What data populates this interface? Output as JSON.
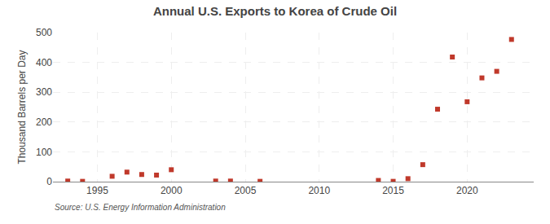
{
  "chart_data": {
    "type": "scatter",
    "title": "Annual U.S. Exports to Korea of Crude Oil",
    "ylabel": "Thousand Barrels per Day",
    "annotations": [
      "Source: U.S. Energy Information Administration"
    ],
    "x": [
      1993,
      1994,
      1996,
      1997,
      1998,
      1999,
      2000,
      2003,
      2004,
      2006,
      2014,
      2015,
      2016,
      2017,
      2018,
      2019,
      2020,
      2021,
      2022,
      2023
    ],
    "values": [
      2,
      1,
      18,
      32,
      24,
      22,
      40,
      2,
      2,
      1,
      4,
      1,
      10,
      57,
      243,
      418,
      268,
      348,
      370,
      477
    ],
    "color": "#c0392b",
    "marker": "square",
    "xlim": [
      1992,
      2024.5
    ],
    "ylim": [
      0,
      500
    ],
    "xticks": [
      1995,
      2000,
      2005,
      2010,
      2015,
      2020
    ],
    "yticks": [
      0,
      100,
      200,
      300,
      400,
      500
    ],
    "grid": true
  }
}
